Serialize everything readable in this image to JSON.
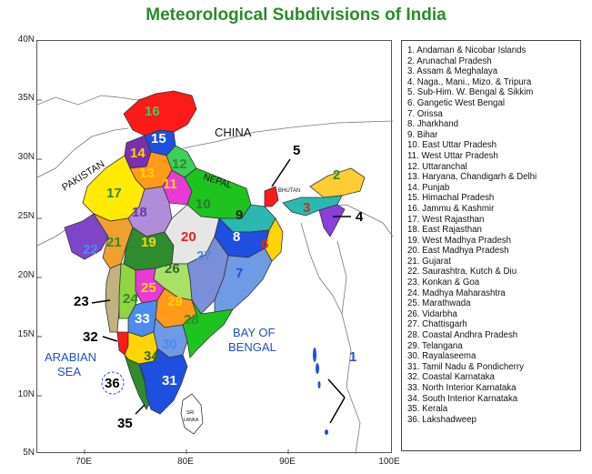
{
  "title": "Meteorological Subdivisions of India",
  "colors": {
    "title": "#2b8a2b",
    "ocean_text": "#1e4fc4",
    "border": "#333333"
  },
  "lat_ticks": [
    "40N",
    "35N",
    "30N",
    "25N",
    "20N",
    "15N",
    "10N",
    "5N"
  ],
  "lon_ticks": [
    "70E",
    "80E",
    "90E",
    "100E"
  ],
  "map_labels": {
    "china": "CHINA",
    "pakistan": "PAKISTAN",
    "nepal": "NEPAL",
    "bhutan": "BHUTAN",
    "bay_1": "BAY OF",
    "bay_2": "BENGAL",
    "arabian_1": "ARABIAN",
    "arabian_2": "SEA",
    "srilanka_1": "SRI",
    "srilanka_2": "LANKA"
  },
  "region_labels": {
    "r1": "1",
    "r2": "2",
    "r3": "3",
    "r4": "4",
    "r5": "5",
    "r6": "6",
    "r7": "7",
    "r8": "8",
    "r9": "9",
    "r10": "10",
    "r11": "11",
    "r12": "12",
    "r13": "13",
    "r14": "14",
    "r15": "15",
    "r16": "16",
    "r17": "17",
    "r18": "18",
    "r19": "19",
    "r20": "20",
    "r21": "21",
    "r22": "22",
    "r23": "23",
    "r24": "24",
    "r25": "25",
    "r26": "26",
    "r27": "27",
    "r28": "28",
    "r29": "29",
    "r30": "30",
    "r31": "31",
    "r32": "32",
    "r33": "33",
    "r34": "34",
    "r35": "35",
    "r36": "36"
  },
  "legend": [
    "1. Andaman & Nicobar Islands",
    "2. Arunachal Pradesh",
    "3. Assam & Meghalaya",
    "4. Naga., Mani., Mizo. & Tripura",
    "5. Sub-Him. W. Bengal & Sikkim",
    "6. Gangetic West Bengal",
    "7. Orissa",
    "8. Jharkhand",
    "9. Bihar",
    "10. East Uttar Pradesh",
    "11. West Uttar Pradesh",
    "12. Uttaranchal",
    "13. Haryana, Chandigarh & Delhi",
    "14. Punjab",
    "15. Himachal Pradesh",
    "16. Jammu & Kashmir",
    "17. West Rajasthan",
    "18. East Rajasthan",
    "19. West Madhya Pradesh",
    "20. East  Madhya  Pradesh",
    "21. Gujarat",
    "22. Saurashtra, Kutch & Diu",
    "23. Konkan & Goa",
    "24. Madhya Maharashtra",
    "25. Marathwada",
    "26. Vidarbha",
    "27. Chattisgarh",
    "28. Coastal Andhra  Pradesh",
    "29. Telangana",
    "30. Rayalaseema",
    "31. Tamil Nadu  & Pondicherry",
    "32. Coastal  Karnataka",
    "33. North  Interior Karnataka",
    "34. South Interior  Karnataka",
    "35. Kerala",
    "36. Lakshadweep"
  ]
}
